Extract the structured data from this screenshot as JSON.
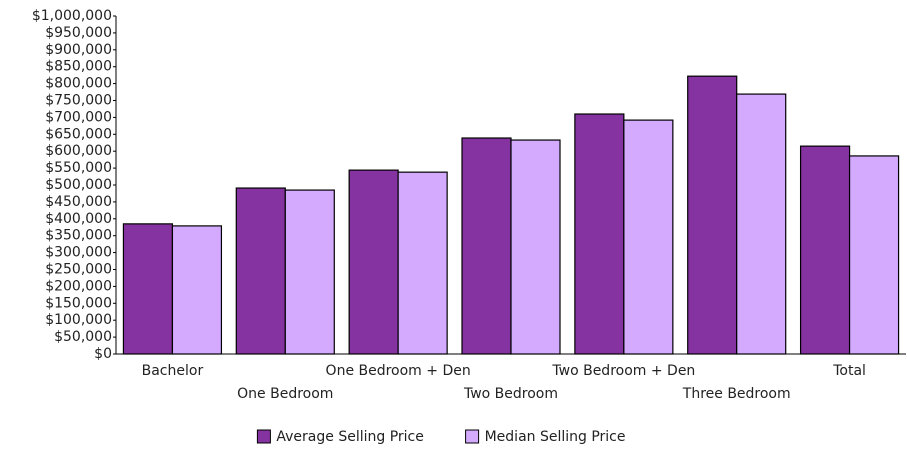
{
  "chart_data": {
    "type": "bar",
    "categories": [
      "Bachelor",
      "One Bedroom",
      "One Bedroom + Den",
      "Two Bedroom",
      "Two Bedroom + Den",
      "Three Bedroom",
      "Total"
    ],
    "series": [
      {
        "name": "Average Selling Price",
        "color": "#8533a0",
        "values": [
          385000,
          491000,
          544000,
          639000,
          710000,
          822000,
          615000
        ]
      },
      {
        "name": "Median Selling Price",
        "color": "#d4aaff",
        "values": [
          379000,
          485000,
          538000,
          633000,
          692000,
          769000,
          586000
        ]
      }
    ],
    "ylim": [
      0,
      1000000
    ],
    "yticks": [
      {
        "value": 0,
        "label": "$0"
      },
      {
        "value": 50000,
        "label": "$50,000"
      },
      {
        "value": 100000,
        "label": "$100,000"
      },
      {
        "value": 150000,
        "label": "$150,000"
      },
      {
        "value": 200000,
        "label": "$200,000"
      },
      {
        "value": 250000,
        "label": "$250,000"
      },
      {
        "value": 300000,
        "label": "$300,000"
      },
      {
        "value": 350000,
        "label": "$350,000"
      },
      {
        "value": 400000,
        "label": "$400,000"
      },
      {
        "value": 450000,
        "label": "$450,000"
      },
      {
        "value": 500000,
        "label": "$500,000"
      },
      {
        "value": 550000,
        "label": "$550,000"
      },
      {
        "value": 600000,
        "label": "$600,000"
      },
      {
        "value": 650000,
        "label": "$650,000"
      },
      {
        "value": 700000,
        "label": "$700,000"
      },
      {
        "value": 750000,
        "label": "$750,000"
      },
      {
        "value": 800000,
        "label": "$800,000"
      },
      {
        "value": 850000,
        "label": "$850,000"
      },
      {
        "value": 900000,
        "label": "$900,000"
      },
      {
        "value": 950000,
        "label": "$950,000"
      },
      {
        "value": 1000000,
        "label": "$1,000,000"
      }
    ],
    "grid": false,
    "legend": "bottom"
  }
}
